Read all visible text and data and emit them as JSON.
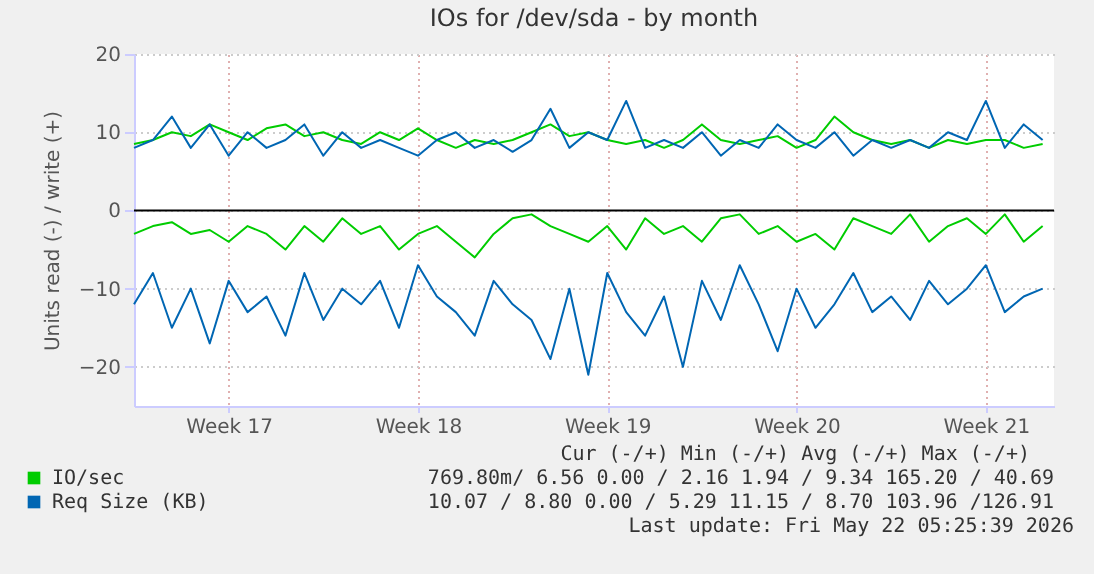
{
  "chart_data": {
    "type": "line",
    "title": "IOs for /dev/sda - by month",
    "ylabel": "Units read (-) / write (+)",
    "categories": [
      null,
      null,
      null,
      null,
      null,
      "Week 17",
      null,
      null,
      null,
      null,
      null,
      null,
      null,
      null,
      null,
      "Week 18",
      null,
      null,
      null,
      null,
      null,
      null,
      null,
      null,
      null,
      "Week 19",
      null,
      null,
      null,
      null,
      null,
      null,
      null,
      null,
      null,
      "Week 20",
      null,
      null,
      null,
      null,
      null,
      null,
      null,
      null,
      null,
      "Week 21",
      null,
      null,
      null
    ],
    "series": [
      {
        "name": "IO/sec",
        "color": "#00cc00",
        "values": [
          8.5,
          9,
          10,
          9.5,
          11,
          10,
          9,
          10.5,
          11,
          9.5,
          10,
          9,
          8.5,
          10,
          9,
          10.5,
          9,
          8,
          9,
          8.5,
          9,
          10,
          11,
          9.5,
          10,
          9,
          8.5,
          9,
          8,
          9,
          11,
          9,
          8.5,
          9,
          9.5,
          8,
          9,
          12,
          10,
          9,
          8.5,
          9,
          8,
          9,
          8.5,
          9,
          9,
          8,
          8.5
        ]
      },
      {
        "color": "#00cc00",
        "values": [
          -3,
          -2,
          -1.5,
          -3,
          -2.5,
          -4,
          -2,
          -3,
          -5,
          -2,
          -4,
          -1,
          -3,
          -2,
          -5,
          -3,
          -2,
          -4,
          -6,
          -3,
          -1,
          -0.5,
          -2,
          -3,
          -4,
          -2,
          -5,
          -1,
          -3,
          -2,
          -4,
          -1,
          -0.5,
          -3,
          -2,
          -4,
          -3,
          -5,
          -1,
          -2,
          -3,
          -0.5,
          -4,
          -2,
          -1,
          -3,
          -0.5,
          -4,
          -2
        ]
      },
      {
        "name": "Req Size (KB)",
        "color": "#0066b3",
        "values": [
          8,
          9,
          12,
          8,
          11,
          7,
          10,
          8,
          9,
          11,
          7,
          10,
          8,
          9,
          8,
          7,
          9,
          10,
          8,
          9,
          7.5,
          9,
          13,
          8,
          10,
          9,
          14,
          8,
          9,
          8,
          10,
          7,
          9,
          8,
          11,
          9,
          8,
          10,
          7,
          9,
          8,
          9,
          8,
          10,
          9,
          14,
          8,
          11,
          9
        ]
      },
      {
        "color": "#0066b3",
        "values": [
          -12,
          -8,
          -15,
          -10,
          -17,
          -9,
          -13,
          -11,
          -16,
          -8,
          -14,
          -10,
          -12,
          -9,
          -15,
          -7,
          -11,
          -13,
          -16,
          -9,
          -12,
          -14,
          -19,
          -10,
          -21,
          -8,
          -13,
          -16,
          -11,
          -20,
          -9,
          -14,
          -7,
          -12,
          -18,
          -10,
          -15,
          -12,
          -8,
          -13,
          -11,
          -14,
          -9,
          -12,
          -10,
          -7,
          -13,
          -11,
          -10
        ]
      }
    ],
    "ylim": [
      -25,
      20
    ],
    "yticks": [
      -20,
      -10,
      0,
      10,
      20
    ],
    "ref_lines": [
      {
        "axis": "y",
        "value": 0,
        "color": "#000000"
      }
    ],
    "annotations": [
      "Cur (-/+)         Min (-/+)         Avg (-/+)         Max (-/+)",
      "769.80m/  6.56      0.00 /  2.16      1.94 /  9.34    165.20 / 40.69",
      " 10.07 /  8.80      0.00 /  5.29     11.15 /  8.70    103.96 /126.91",
      "Last update: Fri May 22 05:25:39 2026"
    ],
    "grid": true,
    "legend": "bottom",
    "line_style": "solid",
    "marker": "none"
  }
}
